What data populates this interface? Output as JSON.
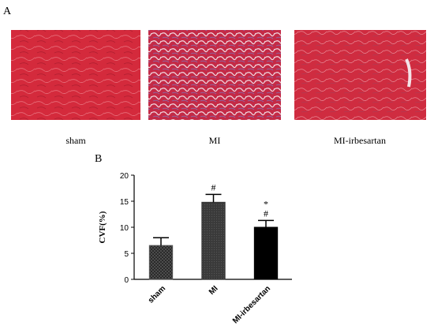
{
  "panel_a": {
    "label": "A",
    "captions": [
      "sham",
      "MI",
      "MI-irbesartan"
    ]
  },
  "chart_data": {
    "type": "bar",
    "panel_label": "B",
    "y_label": "CVF(%)",
    "categories": [
      "sham",
      "MI",
      "MI-irbesartan"
    ],
    "values": [
      6.5,
      14.8,
      10.0
    ],
    "errors": [
      1.5,
      1.5,
      1.3
    ],
    "colors": [
      "#555555",
      "#333333",
      "#000000"
    ],
    "annotations": [
      {
        "index": 1,
        "text": "#"
      },
      {
        "index": 2,
        "text": "#"
      },
      {
        "index": 2,
        "text": "*"
      }
    ],
    "ylim": [
      0,
      20
    ],
    "yticks": [
      0,
      5,
      10,
      15,
      20
    ]
  }
}
